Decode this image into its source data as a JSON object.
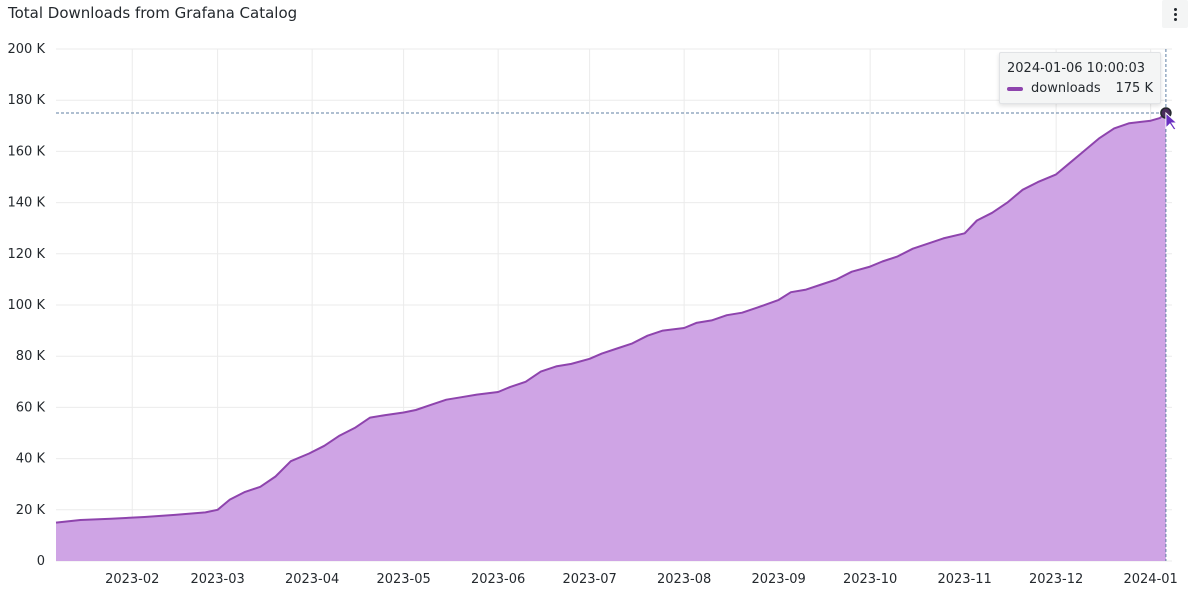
{
  "panel": {
    "title": "Total Downloads from Grafana Catalog"
  },
  "icons": {
    "menu": "vertical-ellipsis-icon"
  },
  "colors": {
    "series_line": "#8e44ad",
    "series_fill": "#cfa4e5",
    "grid": "#ebebeb",
    "crosshair": "#5f7fa3"
  },
  "tooltip": {
    "time": "2024-01-06 10:00:03",
    "series_name": "downloads",
    "value": "175 K"
  },
  "chart_data": {
    "type": "area",
    "title": "Total Downloads from Grafana Catalog",
    "xlabel": "",
    "ylabel": "",
    "x_range": [
      "2023-01-07",
      "2024-01-08"
    ],
    "ylim": [
      0,
      200000
    ],
    "y_ticks": [
      0,
      20000,
      40000,
      60000,
      80000,
      100000,
      120000,
      140000,
      160000,
      180000,
      200000
    ],
    "y_tick_labels": [
      "0",
      "20 K",
      "40 K",
      "60 K",
      "80 K",
      "100 K",
      "120 K",
      "140 K",
      "160 K",
      "180 K",
      "200 K"
    ],
    "x_ticks": [
      "2023-02-01",
      "2023-03-01",
      "2023-04-01",
      "2023-05-01",
      "2023-06-01",
      "2023-07-01",
      "2023-08-01",
      "2023-09-01",
      "2023-10-01",
      "2023-11-01",
      "2023-12-01",
      "2024-01-01"
    ],
    "x_tick_labels": [
      "2023-02",
      "2023-03",
      "2023-04",
      "2023-05",
      "2023-06",
      "2023-07",
      "2023-08",
      "2023-09",
      "2023-10",
      "2023-11",
      "2023-12",
      "2024-01"
    ],
    "grid": true,
    "legend": "none",
    "hover": {
      "x": "2024-01-06",
      "y": 175000
    },
    "series": [
      {
        "name": "downloads",
        "x": [
          "2023-01-07",
          "2023-01-15",
          "2023-01-25",
          "2023-02-05",
          "2023-02-15",
          "2023-02-25",
          "2023-03-01",
          "2023-03-05",
          "2023-03-10",
          "2023-03-15",
          "2023-03-20",
          "2023-03-25",
          "2023-03-31",
          "2023-04-05",
          "2023-04-10",
          "2023-04-15",
          "2023-04-20",
          "2023-04-25",
          "2023-05-01",
          "2023-05-05",
          "2023-05-10",
          "2023-05-15",
          "2023-05-20",
          "2023-05-25",
          "2023-06-01",
          "2023-06-05",
          "2023-06-10",
          "2023-06-15",
          "2023-06-20",
          "2023-06-25",
          "2023-07-01",
          "2023-07-05",
          "2023-07-10",
          "2023-07-15",
          "2023-07-20",
          "2023-07-25",
          "2023-08-01",
          "2023-08-05",
          "2023-08-10",
          "2023-08-15",
          "2023-08-20",
          "2023-08-25",
          "2023-09-01",
          "2023-09-05",
          "2023-09-10",
          "2023-09-15",
          "2023-09-20",
          "2023-09-25",
          "2023-10-01",
          "2023-10-05",
          "2023-10-10",
          "2023-10-15",
          "2023-10-20",
          "2023-10-25",
          "2023-11-01",
          "2023-11-05",
          "2023-11-10",
          "2023-11-15",
          "2023-11-20",
          "2023-11-25",
          "2023-12-01",
          "2023-12-05",
          "2023-12-10",
          "2023-12-15",
          "2023-12-20",
          "2023-12-25",
          "2024-01-01",
          "2024-01-04",
          "2024-01-06"
        ],
        "y": [
          15000,
          16000,
          16500,
          17200,
          18000,
          19000,
          20000,
          24000,
          27000,
          29000,
          33000,
          39000,
          42000,
          45000,
          49000,
          52000,
          56000,
          57000,
          58000,
          59000,
          61000,
          63000,
          64000,
          65000,
          66000,
          68000,
          70000,
          74000,
          76000,
          77000,
          79000,
          81000,
          83000,
          85000,
          88000,
          90000,
          91000,
          93000,
          94000,
          96000,
          97000,
          99000,
          102000,
          105000,
          106000,
          108000,
          110000,
          113000,
          115000,
          117000,
          119000,
          122000,
          124000,
          126000,
          128000,
          133000,
          136000,
          140000,
          145000,
          148000,
          151000,
          155000,
          160000,
          165000,
          169000,
          171000,
          172000,
          173000,
          175000
        ]
      }
    ]
  }
}
